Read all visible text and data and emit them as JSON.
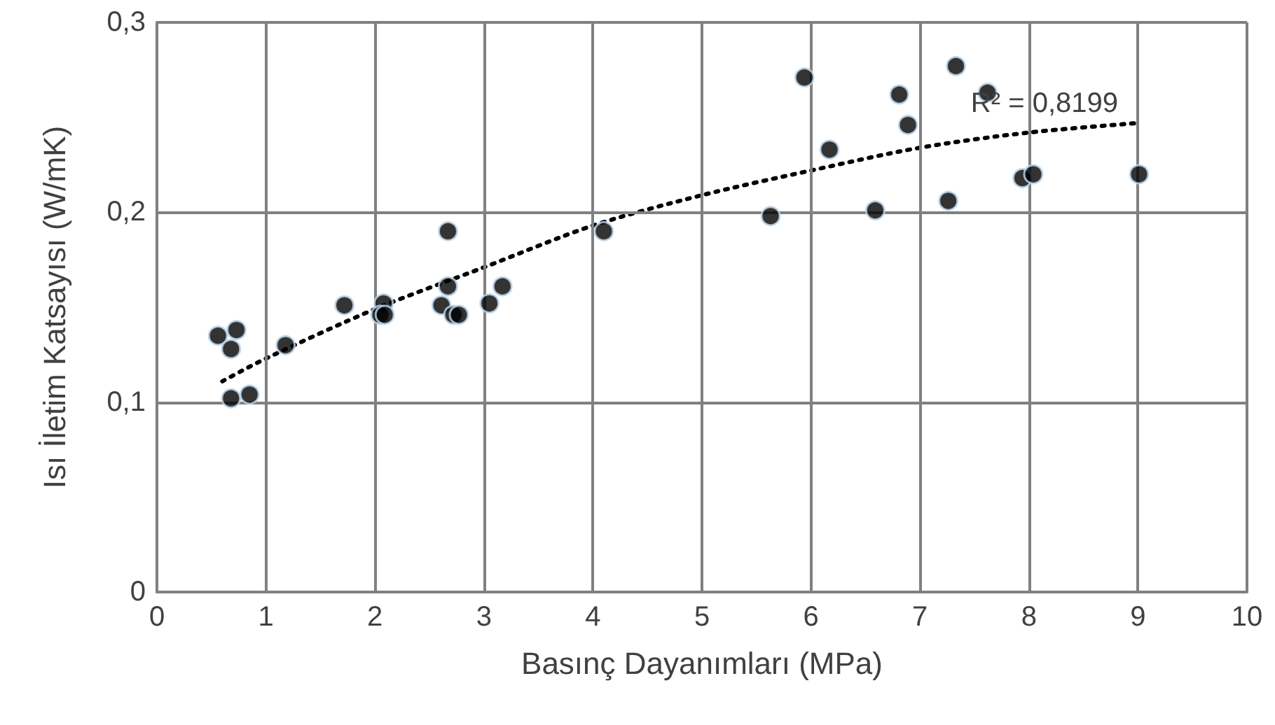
{
  "chart_data": {
    "type": "scatter",
    "xlabel": "Basınç Dayanımları (MPa)",
    "ylabel": "Isı İletim Katsayısı (W/mK)",
    "xlim": [
      0,
      10
    ],
    "xticks": [
      0,
      1,
      2,
      3,
      4,
      5,
      6,
      7,
      8,
      9,
      10
    ],
    "ylim": [
      0,
      0.3
    ],
    "yticks": [
      0,
      {
        "value": 0.1,
        "label": "0,1"
      },
      {
        "value": 0.2,
        "label": "0,2"
      },
      {
        "value": 0.3,
        "label": "0,3"
      }
    ],
    "grid": true,
    "marker": "circle",
    "series": [
      {
        "color": "#000000",
        "x": [
          0.56,
          0.73,
          0.68,
          0.68,
          0.85,
          1.18,
          1.72,
          2.08,
          2.05,
          2.09,
          2.67,
          2.67,
          2.61,
          2.72,
          2.77,
          3.05,
          3.17,
          4.1,
          5.63,
          5.94,
          6.17,
          6.59,
          6.81,
          6.89,
          7.26,
          7.33,
          7.62,
          7.94,
          8.04,
          9.01
        ],
        "values": [
          0.135,
          0.138,
          0.128,
          0.102,
          0.104,
          0.13,
          0.151,
          0.152,
          0.146,
          0.146,
          0.19,
          0.161,
          0.151,
          0.146,
          0.146,
          0.152,
          0.161,
          0.19,
          0.198,
          0.271,
          0.233,
          0.201,
          0.262,
          0.246,
          0.206,
          0.277,
          0.263,
          0.218,
          0.22,
          0.22
        ]
      },
      {
        "type": "line",
        "color": "#000000",
        "line_style": "dotted",
        "marker": "none",
        "x": [
          0.6,
          1,
          2,
          3,
          4,
          5,
          6,
          7,
          8,
          9
        ],
        "values": [
          0.111,
          0.123,
          0.149,
          0.171,
          0.193,
          0.209,
          0.222,
          0.234,
          0.242,
          0.247
        ]
      }
    ],
    "annotations": [
      "R² = 0,8199"
    ]
  }
}
